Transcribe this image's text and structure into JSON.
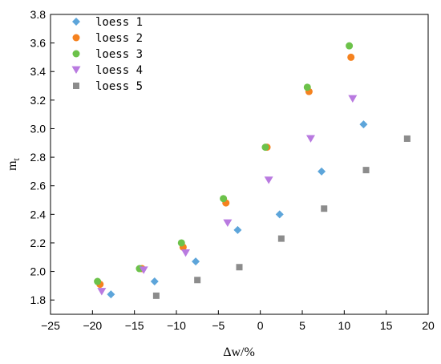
{
  "chart_data": {
    "type": "scatter",
    "title": "",
    "xlabel": "Δw/%",
    "ylabel_main": "m",
    "ylabel_sub": "t",
    "xlim": [
      -25,
      20
    ],
    "ylim": [
      1.7,
      3.8
    ],
    "xticks": [
      -25,
      -20,
      -15,
      -10,
      -5,
      0,
      5,
      10,
      15,
      20
    ],
    "yticks": [
      1.8,
      2.0,
      2.2,
      2.4,
      2.6,
      2.8,
      3.0,
      3.2,
      3.4,
      3.6,
      3.8
    ],
    "xtick_labels": [
      "−25",
      "−20",
      "−15",
      "−10",
      "−5",
      "0",
      "5",
      "10",
      "15",
      "20"
    ],
    "ytick_labels": [
      "1.8",
      "2.0",
      "2.2",
      "2.4",
      "2.6",
      "2.8",
      "3.0",
      "3.2",
      "3.4",
      "3.6",
      "3.8"
    ],
    "grid": false,
    "legend_position": "top-left",
    "series": [
      {
        "name": "loess 1",
        "marker": "diamond",
        "color": "#5DA5DA",
        "points": [
          [
            -17.8,
            1.84
          ],
          [
            -12.6,
            1.93
          ],
          [
            -7.7,
            2.07
          ],
          [
            -2.7,
            2.29
          ],
          [
            2.3,
            2.4
          ],
          [
            7.3,
            2.7
          ],
          [
            12.3,
            3.03
          ]
        ]
      },
      {
        "name": "loess 2",
        "marker": "circle",
        "color": "#F5821F",
        "points": [
          [
            -19.1,
            1.91
          ],
          [
            -14.1,
            2.02
          ],
          [
            -9.2,
            2.17
          ],
          [
            -4.1,
            2.48
          ],
          [
            0.8,
            2.87
          ],
          [
            5.8,
            3.26
          ],
          [
            10.8,
            3.5
          ]
        ]
      },
      {
        "name": "loess 3",
        "marker": "circle",
        "color": "#6CC24A",
        "points": [
          [
            -19.4,
            1.93
          ],
          [
            -14.4,
            2.02
          ],
          [
            -9.4,
            2.2
          ],
          [
            -4.4,
            2.51
          ],
          [
            0.6,
            2.87
          ],
          [
            5.6,
            3.29
          ],
          [
            10.6,
            3.58
          ]
        ]
      },
      {
        "name": "loess 4",
        "marker": "triangle-down",
        "color": "#B97AE0",
        "points": [
          [
            -18.9,
            1.86
          ],
          [
            -13.9,
            2.01
          ],
          [
            -8.9,
            2.13
          ],
          [
            -3.9,
            2.34
          ],
          [
            1.0,
            2.64
          ],
          [
            6.0,
            2.93
          ],
          [
            11.0,
            3.21
          ]
        ]
      },
      {
        "name": "loess 5",
        "marker": "square",
        "color": "#8C8C8C",
        "points": [
          [
            -12.4,
            1.83
          ],
          [
            -7.5,
            1.94
          ],
          [
            -2.5,
            2.03
          ],
          [
            2.5,
            2.23
          ],
          [
            7.6,
            2.44
          ],
          [
            12.6,
            2.71
          ],
          [
            17.5,
            2.93
          ]
        ]
      }
    ]
  }
}
